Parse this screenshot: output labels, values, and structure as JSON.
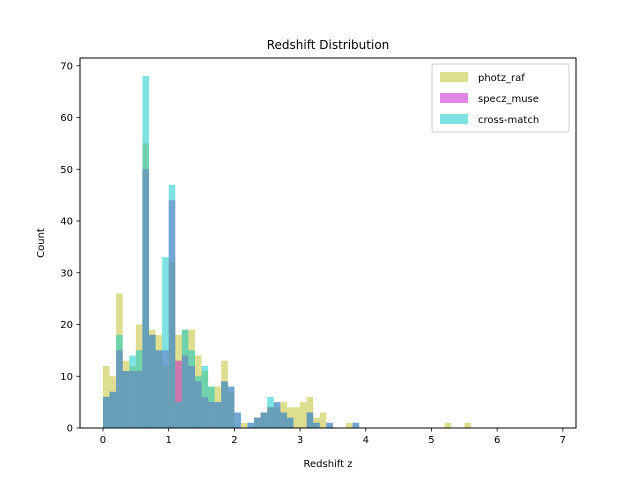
{
  "chart_data": {
    "type": "bar",
    "title": "Redshift Distribution",
    "xlabel": "Redshift z",
    "ylabel": "Count",
    "xlim": [
      -0.35,
      7.2
    ],
    "ylim": [
      0,
      71.5
    ],
    "xticks": [
      "0",
      "1",
      "2",
      "3",
      "4",
      "5",
      "6",
      "7"
    ],
    "yticks": [
      "0",
      "10",
      "20",
      "30",
      "40",
      "50",
      "60",
      "70"
    ],
    "grid": false,
    "legend_position": "top-right",
    "bin_width": 0.1,
    "alpha": 0.5,
    "series": [
      {
        "name": "photz_raf",
        "color": "#bcbd22",
        "bins": [
          [
            0.0,
            12
          ],
          [
            0.1,
            10
          ],
          [
            0.2,
            26
          ],
          [
            0.3,
            13
          ],
          [
            0.4,
            12
          ],
          [
            0.5,
            20
          ],
          [
            0.6,
            55
          ],
          [
            0.7,
            19
          ],
          [
            0.8,
            18
          ],
          [
            0.9,
            12
          ],
          [
            1.0,
            32
          ],
          [
            1.1,
            18
          ],
          [
            1.2,
            19
          ],
          [
            1.3,
            19
          ],
          [
            1.4,
            14
          ],
          [
            1.5,
            11
          ],
          [
            1.6,
            8
          ],
          [
            1.7,
            8
          ],
          [
            1.8,
            13
          ],
          [
            1.9,
            7
          ],
          [
            2.1,
            1
          ],
          [
            2.3,
            2
          ],
          [
            2.4,
            3
          ],
          [
            2.5,
            4
          ],
          [
            2.6,
            4
          ],
          [
            2.7,
            5
          ],
          [
            2.8,
            4
          ],
          [
            2.9,
            4
          ],
          [
            3.0,
            5
          ],
          [
            3.1,
            6
          ],
          [
            3.2,
            2
          ],
          [
            3.3,
            3
          ],
          [
            3.7,
            1
          ],
          [
            5.2,
            1
          ],
          [
            5.5,
            1
          ]
        ]
      },
      {
        "name": "specz_muse",
        "color": "#c20ec6",
        "bins": [
          [
            0.0,
            6
          ],
          [
            0.1,
            7
          ],
          [
            0.2,
            15
          ],
          [
            0.3,
            11
          ],
          [
            0.4,
            11
          ],
          [
            0.5,
            11
          ],
          [
            0.6,
            50
          ],
          [
            0.7,
            18
          ],
          [
            0.8,
            15
          ],
          [
            0.9,
            15
          ],
          [
            1.0,
            44
          ],
          [
            1.1,
            13
          ],
          [
            1.2,
            14
          ],
          [
            1.3,
            12
          ],
          [
            1.4,
            9
          ],
          [
            1.5,
            6
          ],
          [
            1.6,
            5
          ],
          [
            1.7,
            5
          ],
          [
            1.8,
            9
          ],
          [
            1.9,
            8
          ],
          [
            2.0,
            3
          ],
          [
            2.2,
            1
          ],
          [
            2.3,
            2
          ],
          [
            2.4,
            3
          ],
          [
            2.5,
            4
          ],
          [
            2.6,
            5
          ],
          [
            2.7,
            3
          ],
          [
            2.8,
            2
          ],
          [
            3.1,
            3
          ],
          [
            3.2,
            1
          ],
          [
            3.4,
            1
          ],
          [
            3.8,
            1
          ]
        ]
      },
      {
        "name": "cross-match",
        "color": "#00c6c6",
        "bins": [
          [
            0.0,
            6
          ],
          [
            0.1,
            7
          ],
          [
            0.2,
            18
          ],
          [
            0.3,
            11
          ],
          [
            0.4,
            14
          ],
          [
            0.5,
            15
          ],
          [
            0.6,
            68
          ],
          [
            0.7,
            18
          ],
          [
            0.8,
            15
          ],
          [
            0.9,
            33
          ],
          [
            1.0,
            47
          ],
          [
            1.1,
            5
          ],
          [
            1.2,
            19
          ],
          [
            1.3,
            15
          ],
          [
            1.4,
            10
          ],
          [
            1.5,
            12
          ],
          [
            1.6,
            8
          ],
          [
            1.7,
            5
          ],
          [
            1.8,
            9
          ],
          [
            1.9,
            8
          ],
          [
            2.0,
            3
          ],
          [
            2.2,
            1
          ],
          [
            2.3,
            2
          ],
          [
            2.4,
            3
          ],
          [
            2.5,
            6
          ],
          [
            2.6,
            5
          ],
          [
            2.7,
            3
          ],
          [
            2.8,
            2
          ],
          [
            3.1,
            3
          ],
          [
            3.2,
            1
          ],
          [
            3.4,
            1
          ],
          [
            3.8,
            1
          ]
        ]
      }
    ]
  }
}
